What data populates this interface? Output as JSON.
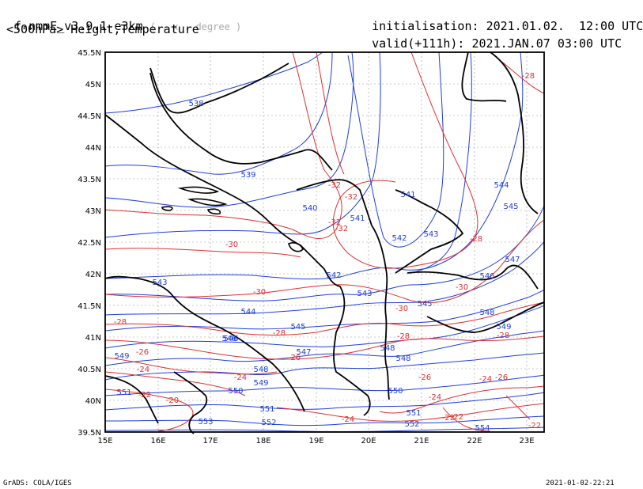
{
  "header": {
    "model": "f-nmmE_v3.9.1-e3km",
    "units": "( . x . degree )",
    "init_label": "initialisation:",
    "init_value": "2021.01.02.  12:00 UTC",
    "field": "<500hPa> Height,Temperature",
    "valid_label": "valid(+111h):",
    "valid_value": "2021.JAN.07 03:00 UTC"
  },
  "axes": {
    "lat_labels": [
      "45.5N",
      "45N",
      "44.5N",
      "44N",
      "43.5N",
      "43N",
      "42.5N",
      "42N",
      "41.5N",
      "41N",
      "40.5N",
      "40N",
      "39.5N"
    ],
    "lon_labels": [
      "15E",
      "16E",
      "17E",
      "18E",
      "19E",
      "20E",
      "21E",
      "22E",
      "23E"
    ]
  },
  "height_labels": [
    "538",
    "539",
    "540",
    "541",
    "541",
    "542",
    "543",
    "544",
    "545",
    "547",
    "543",
    "546",
    "542",
    "543",
    "545",
    "546",
    "548",
    "549",
    "544",
    "545",
    "546",
    "547",
    "548",
    "548",
    "548",
    "549",
    "550",
    "550",
    "551",
    "551",
    "552",
    "552",
    "553",
    "554",
    "549",
    "551"
  ],
  "temp_labels": [
    "-28",
    "-32",
    "-32",
    "-32",
    "-30",
    "-32",
    "-30",
    "-30",
    "-30",
    "-28",
    "-28",
    "-28",
    "-26",
    "-26",
    "-24",
    "-24",
    "-22",
    "-22",
    "-20",
    "-24",
    "-24",
    "-26",
    "-24",
    "-28",
    "-26",
    "-28",
    "-22",
    "-22"
  ],
  "colors": {
    "height": "#1f3fd9",
    "temp": "#e03030",
    "border": "#000000",
    "grid": "#999999"
  },
  "footer": {
    "left": "GrADS: COLA/IGES",
    "right": "2021-01-02-22:21"
  }
}
